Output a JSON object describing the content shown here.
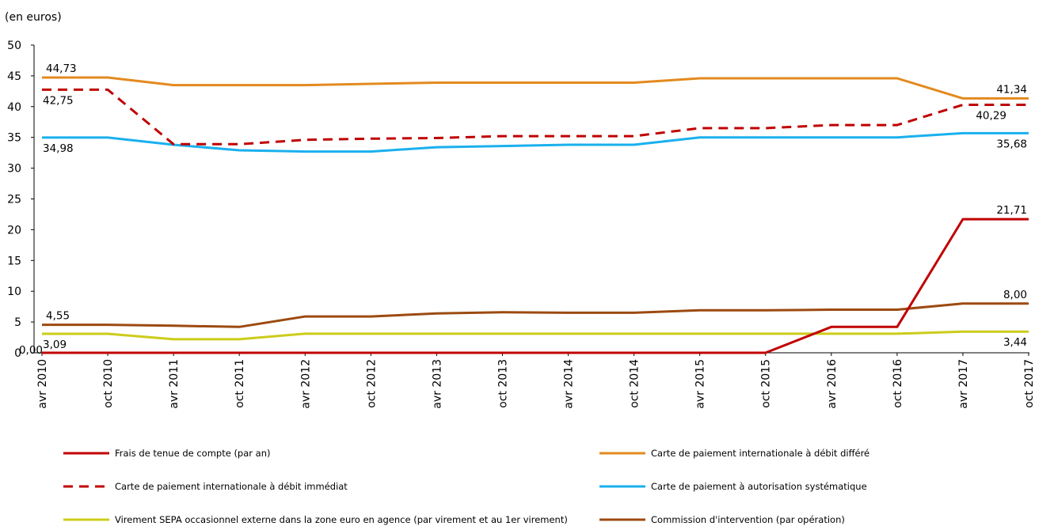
{
  "chart_data": {
    "type": "line",
    "unit_label": "(en euros)",
    "ylim": [
      0,
      50
    ],
    "y_ticks": [
      0,
      5,
      10,
      15,
      20,
      25,
      30,
      35,
      40,
      45,
      50
    ],
    "y_tick_labels": [
      "0",
      "5",
      "10",
      "15",
      "20",
      "25",
      "30",
      "35",
      "40",
      "45",
      "50"
    ],
    "grid": false,
    "legend_position": "bottom",
    "x": [
      "avr 2010",
      "oct 2010",
      "avr 2011",
      "oct 2011",
      "avr 2012",
      "oct 2012",
      "avr 2013",
      "oct 2013",
      "avr 2014",
      "oct 2014",
      "avr 2015",
      "oct 2015",
      "avr 2016",
      "oct 2016",
      "avr 2017",
      "oct 2017"
    ],
    "series": [
      {
        "name": "Frais de tenue de compte (par an)",
        "color": "#C00000",
        "dash": "solid",
        "values": [
          0,
          0,
          0,
          0,
          0,
          0,
          0,
          0,
          0,
          0,
          0,
          0,
          4.2,
          4.2,
          21.71,
          21.71
        ],
        "labels": [
          {
            "index": 0,
            "text": "0,00",
            "pos": "left"
          },
          {
            "index": 15,
            "text": "21,71",
            "pos": "above"
          }
        ]
      },
      {
        "name": "Carte de paiement internationale à débit différé",
        "color": "#E38A1F",
        "dash": "solid",
        "values": [
          44.73,
          44.73,
          43.5,
          43.5,
          43.5,
          43.7,
          43.9,
          43.9,
          43.9,
          43.9,
          44.6,
          44.6,
          44.6,
          44.6,
          41.34,
          41.34
        ],
        "labels": [
          {
            "index": 0,
            "text": "44,73",
            "pos": "above"
          },
          {
            "index": 15,
            "text": "41,34",
            "pos": "above"
          }
        ]
      },
      {
        "name": "Carte de paiement internationale à débit immédiat",
        "color": "#C00000",
        "dash": "dashed",
        "values": [
          42.75,
          42.75,
          33.9,
          33.9,
          34.6,
          34.8,
          34.9,
          35.2,
          35.2,
          35.2,
          36.5,
          36.5,
          37.0,
          37.0,
          40.29,
          40.29
        ],
        "labels": [
          {
            "index": 0,
            "text": "42,75",
            "pos": "below"
          },
          {
            "index": 15,
            "text": "40,29",
            "pos": "below-left"
          }
        ]
      },
      {
        "name": "Carte de paiement à autorisation systématique",
        "color": "#1AB0EE",
        "dash": "solid",
        "values": [
          34.98,
          34.98,
          33.8,
          32.9,
          32.7,
          32.7,
          33.4,
          33.6,
          33.8,
          33.8,
          35.0,
          35.0,
          35.0,
          35.0,
          35.68,
          35.68
        ],
        "labels": [
          {
            "index": 0,
            "text": "34,98",
            "pos": "below"
          },
          {
            "index": 15,
            "text": "35,68",
            "pos": "below"
          }
        ]
      },
      {
        "name": "Virement SEPA occasionnel externe dans la zone euro en agence (par virement et au 1er virement)",
        "color": "#CCCC1A",
        "dash": "solid",
        "values": [
          3.09,
          3.09,
          2.2,
          2.2,
          3.1,
          3.1,
          3.1,
          3.1,
          3.1,
          3.1,
          3.1,
          3.1,
          3.1,
          3.1,
          3.44,
          3.44
        ],
        "labels": [
          {
            "index": 0,
            "text": "3,09",
            "pos": "below"
          },
          {
            "index": 15,
            "text": "3,44",
            "pos": "below"
          }
        ]
      },
      {
        "name": "Commission d'intervention (par opération)",
        "color": "#9C4A10",
        "dash": "solid",
        "values": [
          4.55,
          4.55,
          4.4,
          4.2,
          5.9,
          5.9,
          6.4,
          6.6,
          6.5,
          6.5,
          6.9,
          6.9,
          7.0,
          7.0,
          8.0,
          8.0
        ],
        "labels": [
          {
            "index": 0,
            "text": "4,55",
            "pos": "above"
          },
          {
            "index": 15,
            "text": "8,00",
            "pos": "above"
          }
        ]
      }
    ]
  }
}
